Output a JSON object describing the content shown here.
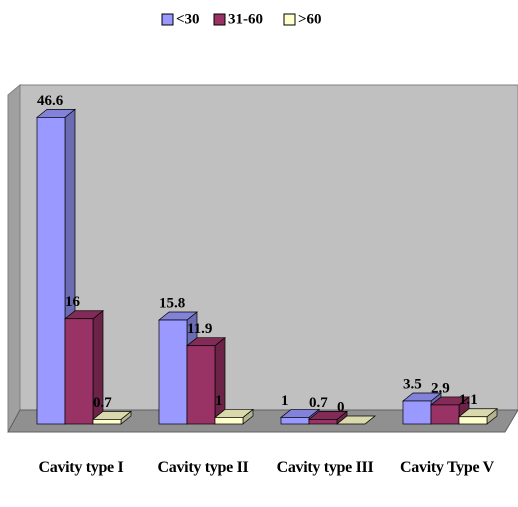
{
  "chart_data": {
    "type": "bar3d",
    "categories": [
      "Cavity type I",
      "Cavity type II",
      "Cavity type III",
      "Cavity Type V"
    ],
    "series": [
      {
        "name": "<30",
        "color": "#9999ff",
        "values": [
          46.6,
          15.8,
          1,
          3.5
        ]
      },
      {
        "name": "31-60",
        "color": "#993366",
        "values": [
          16,
          11.9,
          0.7,
          2.9
        ]
      },
      {
        "name": ">60",
        "color": "#ffffcc",
        "values": [
          0.7,
          1,
          0,
          1.1
        ]
      }
    ],
    "ylim": [
      0,
      50
    ],
    "legend": "top"
  }
}
